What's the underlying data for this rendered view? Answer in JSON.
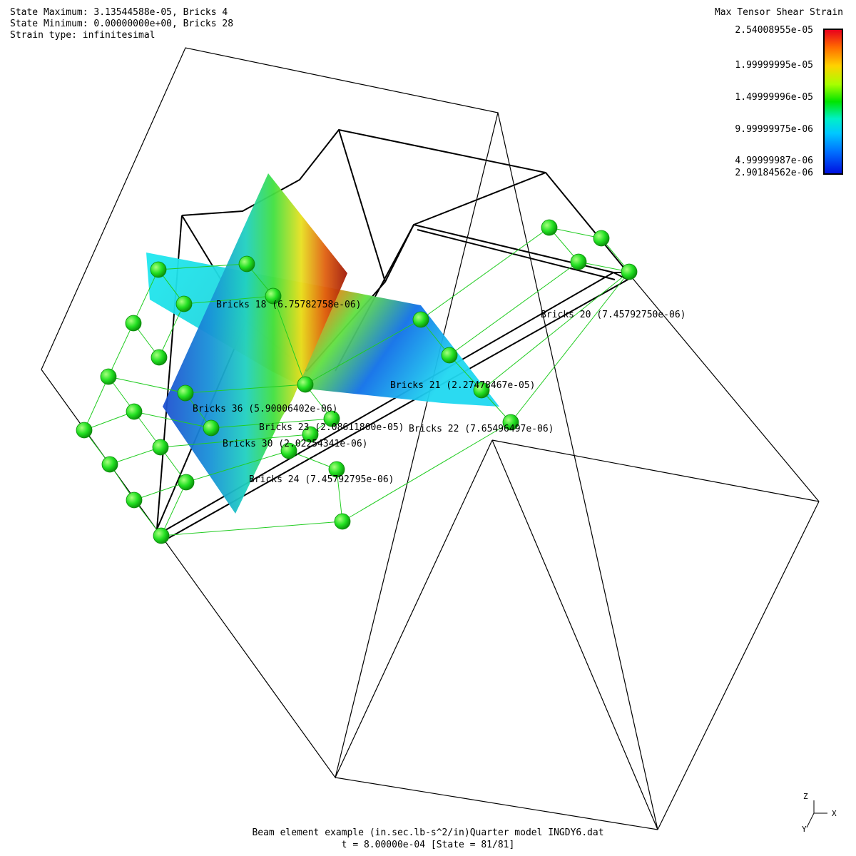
{
  "hud": {
    "state_max": "State Maximum: 3.13544588e-05, Bricks 4",
    "state_min": "State Minimum: 0.00000000e+00, Bricks 28",
    "strain_type": "Strain type: infinitesimal"
  },
  "legend": {
    "title": "Max Tensor Shear Strain",
    "ticks": [
      "2.54008955e-05",
      "1.99999995e-05",
      "1.49999996e-05",
      "9.99999975e-06",
      "4.99999987e-06",
      "2.90184562e-06"
    ],
    "colors": {
      "high": "#e8001c",
      "mid": "#00e400",
      "low": "#0010e0"
    }
  },
  "element_labels": [
    "Bricks 18 (6.75782758e-06)",
    "Bricks 20 (7.45792750e-06)",
    "Bricks 21 (2.27478467e-05)",
    "Bricks 36 (5.90006402e-06)",
    "Bricks 23 (2.08611800e-05)",
    "Bricks 22 (7.65496497e-06)",
    "Bricks 30 (2.02254341e-06)",
    "Bricks 24 (7.45792795e-06)"
  ],
  "axes": {
    "z": "Z",
    "x": "X",
    "y": "Y"
  },
  "footer": {
    "title": "Beam element example (in.sec.lb-s^2/in)Quarter model INGDY6.dat",
    "time": "t = 8.00000e-04 [State = 81/81]"
  },
  "colors": {
    "mesh_edge": "#000000",
    "node": "#22e022",
    "node_dark": "#0a8a0a",
    "mesh_line": "#22cc22"
  }
}
